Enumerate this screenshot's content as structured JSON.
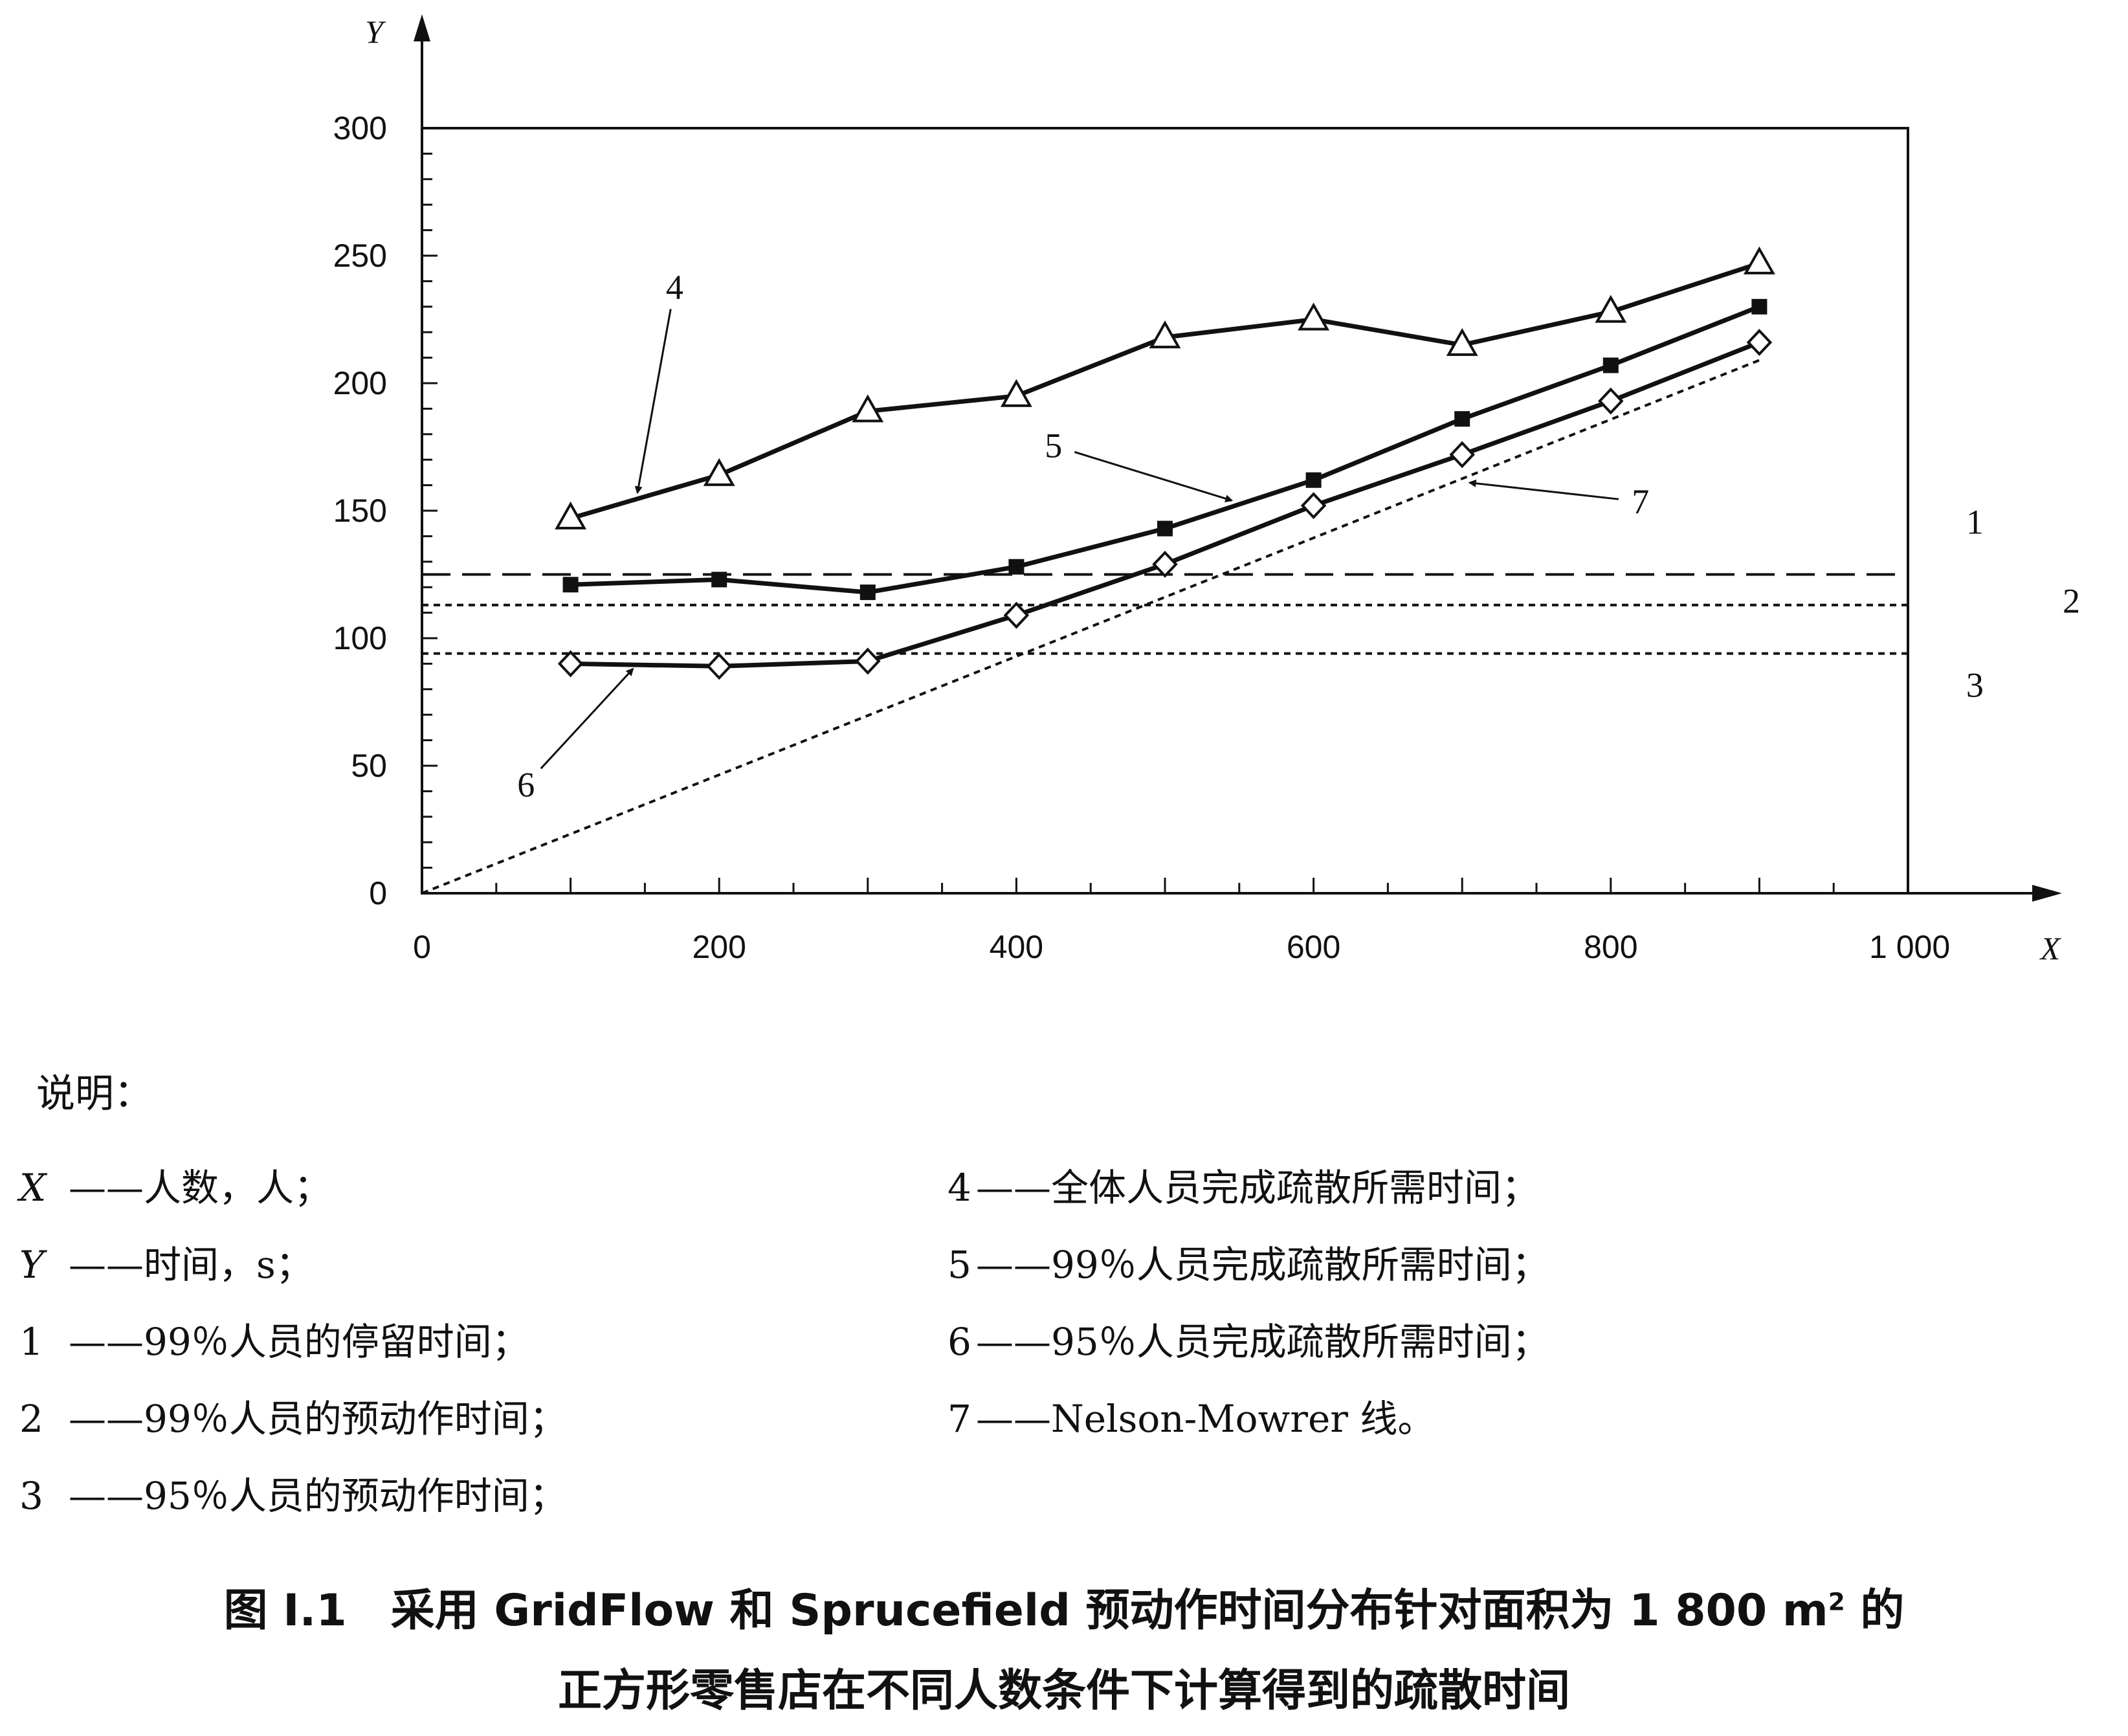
{
  "chart_data": {
    "type": "line",
    "xlabel": "X",
    "ylabel": "Y",
    "xlim": [
      0,
      1000
    ],
    "ylim": [
      0,
      300
    ],
    "x_ticks": [
      {
        "value": 0,
        "label": "0"
      },
      {
        "value": 200,
        "label": "200"
      },
      {
        "value": 400,
        "label": "400"
      },
      {
        "value": 600,
        "label": "600"
      },
      {
        "value": 800,
        "label": "800"
      },
      {
        "value": 1000,
        "label": "1 000"
      }
    ],
    "y_ticks": [
      {
        "value": 0,
        "label": "0"
      },
      {
        "value": 50,
        "label": "50"
      },
      {
        "value": 100,
        "label": "100"
      },
      {
        "value": 150,
        "label": "150"
      },
      {
        "value": 200,
        "label": "200"
      },
      {
        "value": 250,
        "label": "250"
      },
      {
        "value": 300,
        "label": "300"
      }
    ],
    "grid": false,
    "series": [
      {
        "name": "1",
        "style": "long-dash",
        "marker": "none",
        "x": [
          0,
          1000
        ],
        "y": [
          125,
          125
        ]
      },
      {
        "name": "2",
        "style": "short-dash",
        "marker": "none",
        "x": [
          0,
          1000
        ],
        "y": [
          113,
          113
        ]
      },
      {
        "name": "3",
        "style": "short-dash",
        "marker": "none",
        "x": [
          0,
          1000
        ],
        "y": [
          94,
          94
        ]
      },
      {
        "name": "4",
        "style": "solid",
        "marker": "triangle-open",
        "x": [
          100,
          200,
          300,
          400,
          500,
          600,
          700,
          800,
          900
        ],
        "y": [
          147,
          164,
          189,
          195,
          218,
          225,
          215,
          228,
          247
        ]
      },
      {
        "name": "5",
        "style": "solid",
        "marker": "square-filled",
        "x": [
          100,
          200,
          300,
          400,
          500,
          600,
          700,
          800,
          900
        ],
        "y": [
          121,
          123,
          118,
          128,
          143,
          162,
          186,
          207,
          230
        ]
      },
      {
        "name": "6",
        "style": "solid",
        "marker": "diamond-open",
        "x": [
          100,
          200,
          300,
          400,
          500,
          600,
          700,
          800,
          900
        ],
        "y": [
          90,
          89,
          91,
          109,
          129,
          152,
          172,
          193,
          216
        ]
      },
      {
        "name": "7",
        "style": "short-dash",
        "marker": "none",
        "x": [
          0,
          900
        ],
        "y": [
          0,
          209
        ]
      }
    ],
    "callouts": [
      {
        "label": "4",
        "text_at": [
          170,
          233
        ],
        "arrow_to": [
          145,
          157
        ]
      },
      {
        "label": "5",
        "text_at": [
          425,
          171
        ],
        "arrow_to": [
          545,
          154
        ]
      },
      {
        "label": "6",
        "text_at": [
          70,
          38
        ],
        "arrow_to": [
          142,
          88
        ]
      },
      {
        "label": "7",
        "text_at": [
          820,
          149
        ],
        "arrow_to": [
          705,
          161
        ]
      },
      {
        "label": "1",
        "text_at": [
          1045,
          141
        ],
        "arrow_to": null
      },
      {
        "label": "2",
        "text_at": [
          1110,
          110
        ],
        "arrow_to": null
      },
      {
        "label": "3",
        "text_at": [
          1045,
          77
        ],
        "arrow_to": null
      }
    ]
  },
  "legend": {
    "title": "说明：",
    "left_items": [
      {
        "key": "X",
        "text": "——人数，人；"
      },
      {
        "key": "Y",
        "text": "——时间，s；"
      },
      {
        "key": "1",
        "text": "——99％人员的停留时间；"
      },
      {
        "key": "2",
        "text": "——99％人员的预动作时间；"
      },
      {
        "key": "3",
        "text": "——95％人员的预动作时间；"
      }
    ],
    "right_items": [
      {
        "key": "4",
        "text": "——全体人员完成疏散所需时间；"
      },
      {
        "key": "5",
        "text": "——99％人员完成疏散所需时间；"
      },
      {
        "key": "6",
        "text": "——95％人员完成疏散所需时间；"
      },
      {
        "key": "7",
        "text": "——Nelson-Mowrer 线。"
      }
    ]
  },
  "caption": {
    "line1_prefix": "图 I.1　采用 GridFlow 和 Sprucefield 预动作时间分布针对面积为 1 800 m",
    "line1_sup": "2",
    "line1_suffix": " 的",
    "line2": "正方形零售店在不同人数条件下计算得到的疏散时间"
  }
}
